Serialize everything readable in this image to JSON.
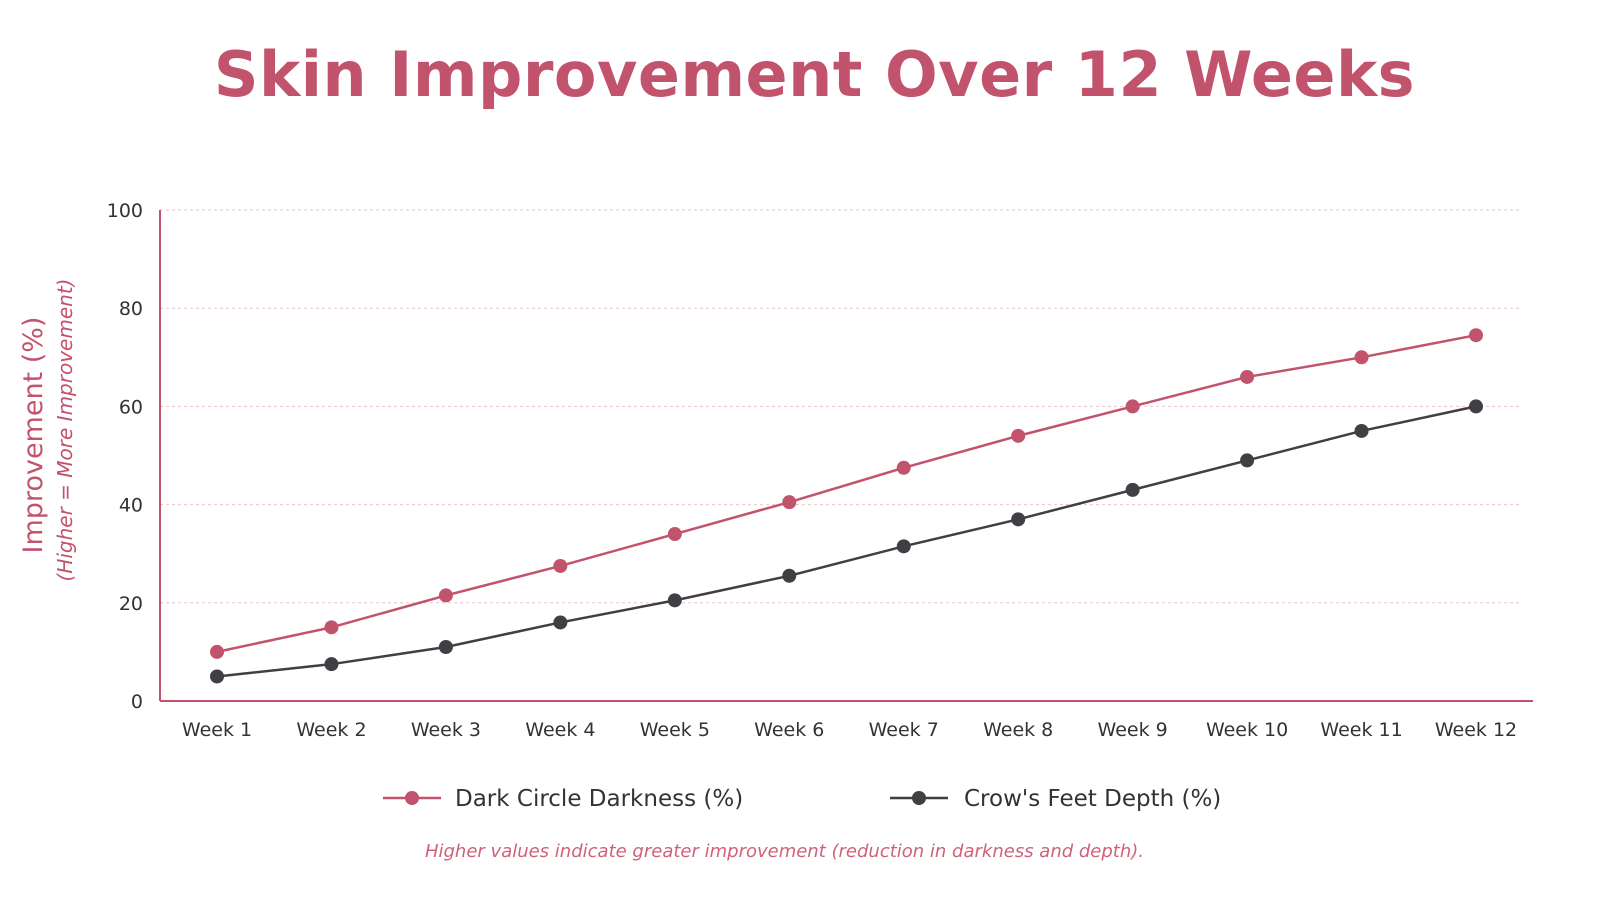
{
  "chart_data": {
    "type": "line",
    "title": "Skin Improvement Over 12 Weeks",
    "ylabel": "Improvement (%)",
    "ylabel_sub": "(Higher = More Improvement)",
    "xlabel": "",
    "ylim": [
      0,
      100
    ],
    "yticks": [
      "0",
      "20",
      "40",
      "60",
      "80",
      "100"
    ],
    "grid": "horizontal-dashed",
    "legend_position": "bottom",
    "categories": [
      "Week 1",
      "Week 2",
      "Week 3",
      "Week 4",
      "Week 5",
      "Week 6",
      "Week 7",
      "Week 8",
      "Week 9",
      "Week 10",
      "Week 11",
      "Week 12"
    ],
    "series": [
      {
        "name": "Dark Circle Darkness (%)",
        "color": "#c2536c",
        "values": [
          10,
          15,
          21.5,
          27.5,
          34,
          40.5,
          47.5,
          54,
          60,
          66,
          70,
          74.5
        ]
      },
      {
        "name": "Crow's Feet Depth (%)",
        "color": "#3f3f44",
        "values": [
          5,
          7.5,
          11,
          16,
          20.5,
          25.5,
          31.5,
          37,
          43,
          49,
          55,
          60
        ]
      }
    ],
    "note": "Higher values indicate greater improvement (reduction in darkness and depth)."
  },
  "colors": {
    "accent": "#c2536c",
    "grid": "#e6c6cd",
    "dark_series": "#3f3f44"
  }
}
